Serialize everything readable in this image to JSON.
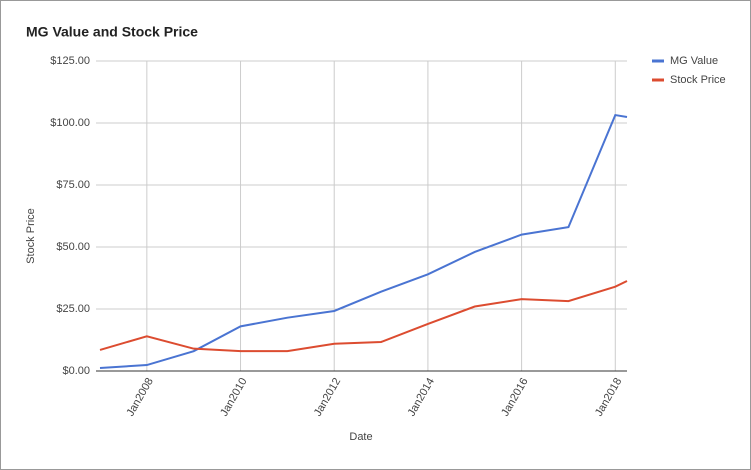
{
  "chart_data": {
    "type": "line",
    "title": "MG Value and Stock Price",
    "x_label": "Date",
    "y_label": "Stock Price",
    "x": [
      "2007-01",
      "2008-01",
      "2009-01",
      "2010-01",
      "2011-01",
      "2012-01",
      "2013-01",
      "2014-01",
      "2015-01",
      "2016-01",
      "2017-01",
      "2018-01",
      "2018-04"
    ],
    "series": [
      {
        "name": "MG Value",
        "color": "#4a74d2",
        "values": [
          1.2,
          2.4,
          8,
          18,
          21.5,
          24.2,
          32,
          39,
          48,
          55,
          58,
          103.2,
          102.4
        ]
      },
      {
        "name": "Stock Price",
        "color": "#dc4c30",
        "values": [
          8.5,
          14,
          9,
          8,
          8,
          11,
          11.7,
          19,
          26,
          29,
          28.2,
          34,
          36.3
        ]
      }
    ],
    "xlim": [
      "2007-01",
      "2018-04"
    ],
    "xticks": [
      {
        "value": "2008-01",
        "label": "Jan2008"
      },
      {
        "value": "2010-01",
        "label": "Jan2010"
      },
      {
        "value": "2012-01",
        "label": "Jan2012"
      },
      {
        "value": "2014-01",
        "label": "Jan2014"
      },
      {
        "value": "2016-01",
        "label": "Jan2016"
      },
      {
        "value": "2018-01",
        "label": "Jan2018"
      }
    ],
    "ylim": [
      0,
      125
    ],
    "yticks": [
      {
        "value": 0,
        "label": "$0.00"
      },
      {
        "value": 25,
        "label": "$25.00"
      },
      {
        "value": 50,
        "label": "$50.00"
      },
      {
        "value": 75,
        "label": "$75.00"
      },
      {
        "value": 100,
        "label": "$100.00"
      },
      {
        "value": 125,
        "label": "$125.00"
      }
    ],
    "grid": true,
    "legend": "right"
  }
}
